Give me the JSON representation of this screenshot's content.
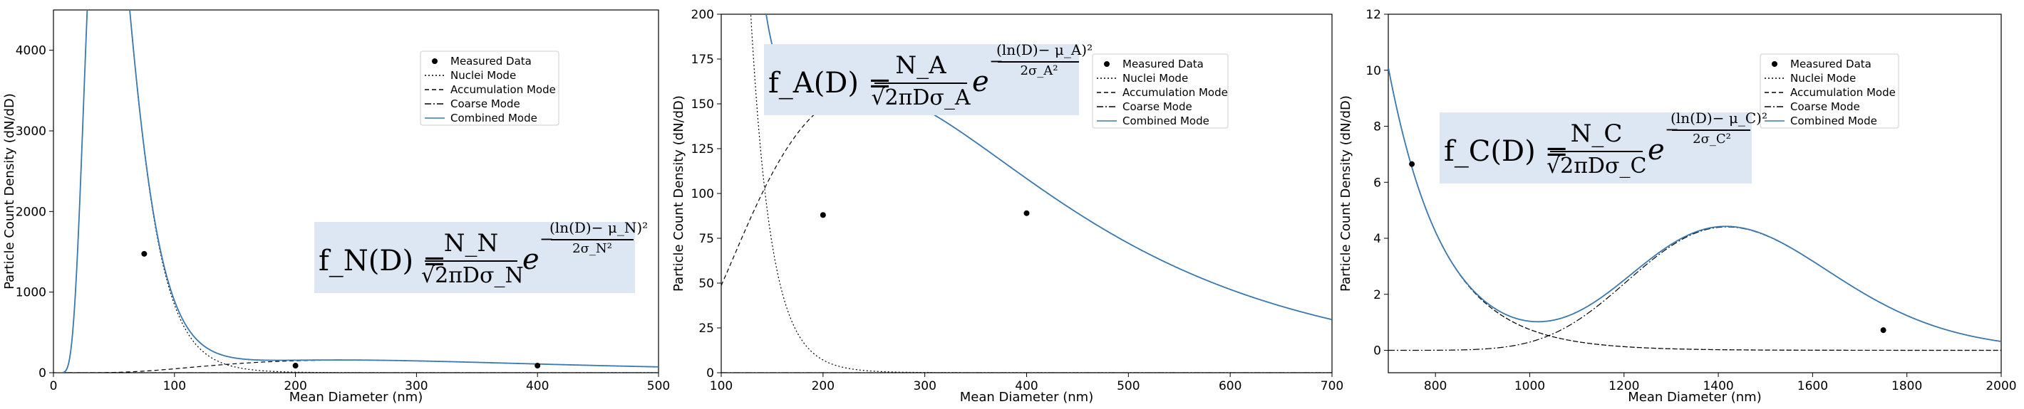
{
  "chart_data": [
    {
      "type": "line",
      "title": "",
      "xlabel": "Mean Diameter (nm)",
      "ylabel": "Particle Count Density (dN/dD)",
      "xlim": [
        0,
        500
      ],
      "ylim": [
        0,
        4500
      ],
      "xticks": [
        "0",
        "100",
        "200",
        "300",
        "400",
        "500"
      ],
      "yticks": [
        "0",
        "1000",
        "2000",
        "3000",
        "4000"
      ],
      "legend": {
        "placement": "top-right",
        "entries": [
          "Measured Data",
          "Nuclei Mode",
          "Accumulation Mode",
          "Coarse Mode",
          "Combined Mode"
        ]
      },
      "grid": false,
      "measured_points": [
        {
          "x": 75,
          "y": 1475
        },
        {
          "x": 200,
          "y": 88
        },
        {
          "x": 400,
          "y": 88
        }
      ],
      "formula": {
        "lhs": "f_N(D) =",
        "numerator": "N_N",
        "denominator": "√2πDσ_N",
        "exponent_numerator": "(ln(D)− μ_N)²",
        "exponent_denominator": "2σ_N²"
      }
    },
    {
      "type": "line",
      "title": "",
      "xlabel": "Mean Diameter (nm)",
      "ylabel": "Particle Count Density (dN/dD)",
      "xlim": [
        100,
        700
      ],
      "ylim": [
        0,
        200
      ],
      "xticks": [
        "100",
        "200",
        "300",
        "400",
        "500",
        "600",
        "700"
      ],
      "yticks": [
        "0",
        "25",
        "50",
        "75",
        "100",
        "125",
        "150",
        "175",
        "200"
      ],
      "legend": {
        "placement": "top-right",
        "entries": [
          "Measured Data",
          "Nuclei Mode",
          "Accumulation Mode",
          "Coarse Mode",
          "Combined Mode"
        ]
      },
      "grid": false,
      "measured_points": [
        {
          "x": 200,
          "y": 88
        },
        {
          "x": 400,
          "y": 89
        }
      ],
      "formula": {
        "lhs": "f_A(D) =",
        "numerator": "N_A",
        "denominator": "√2πDσ_A",
        "exponent_numerator": "(ln(D)− μ_A)²",
        "exponent_denominator": "2σ_A²"
      }
    },
    {
      "type": "line",
      "title": "",
      "xlabel": "Mean Diameter (nm)",
      "ylabel": "Particle Count Density (dN/dD)",
      "xlim": [
        700,
        2000
      ],
      "ylim": [
        -0.8,
        12
      ],
      "xticks": [
        "800",
        "1000",
        "1200",
        "1400",
        "1600",
        "1800",
        "2000"
      ],
      "yticks": [
        "0",
        "2",
        "4",
        "6",
        "8",
        "10",
        "12"
      ],
      "legend": {
        "placement": "top-right",
        "entries": [
          "Measured Data",
          "Nuclei Mode",
          "Accumulation Mode",
          "Coarse Mode",
          "Combined Mode"
        ]
      },
      "grid": false,
      "measured_points": [
        {
          "x": 750,
          "y": 6.65
        },
        {
          "x": 1750,
          "y": 0.72
        }
      ],
      "formula": {
        "lhs": "f_C(D) =",
        "numerator": "N_C",
        "denominator": "√2πDσ_C",
        "exponent_numerator": "(ln(D)− μ_C)²",
        "exponent_denominator": "2σ_C²"
      }
    }
  ],
  "style": {
    "combined_color": "#3a78b0",
    "mode_color": "#000000",
    "formula_box_color": "#dce7f3"
  }
}
